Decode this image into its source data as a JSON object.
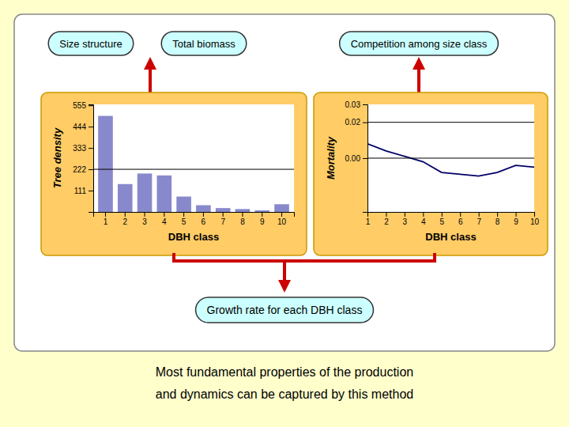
{
  "annotations": [
    "Size structure",
    "Total biomass",
    "Competition among size class",
    "Growth rate for each DBH class",
    "Most fundamental properties of the production",
    "and dynamics can be captured by this method"
  ],
  "chart_data": [
    {
      "type": "bar",
      "xlabel": "DBH class",
      "ylabel": "Tree density",
      "categories": [
        "1",
        "2",
        "3",
        "4",
        "5",
        "6",
        "7",
        "8",
        "9",
        "10"
      ],
      "values": [
        500,
        145,
        200,
        190,
        80,
        35,
        20,
        15,
        8,
        40
      ],
      "color": "#8888cc",
      "ylim": [
        0,
        560
      ],
      "yticks": [
        111,
        222,
        333,
        444,
        555
      ],
      "reference_lines": [
        222
      ]
    },
    {
      "type": "line",
      "xlabel": "DBH class",
      "ylabel": "Mortality",
      "x": [
        1,
        2,
        3,
        4,
        5,
        6,
        7,
        8,
        9,
        10
      ],
      "values": [
        0.008,
        0.004,
        0.001,
        -0.002,
        -0.008,
        -0.009,
        -0.01,
        -0.008,
        -0.004,
        -0.005
      ],
      "color": "#000066",
      "xlim": [
        1,
        10
      ],
      "xticks": [
        1,
        2,
        3,
        4,
        5,
        6,
        7,
        8,
        9,
        10
      ],
      "ylim": [
        -0.03,
        0.03
      ],
      "yticks": [
        {
          "value": 0,
          "label": "0.00"
        },
        0.02,
        0.03
      ],
      "reference_lines": [
        0.02,
        0
      ]
    }
  ]
}
